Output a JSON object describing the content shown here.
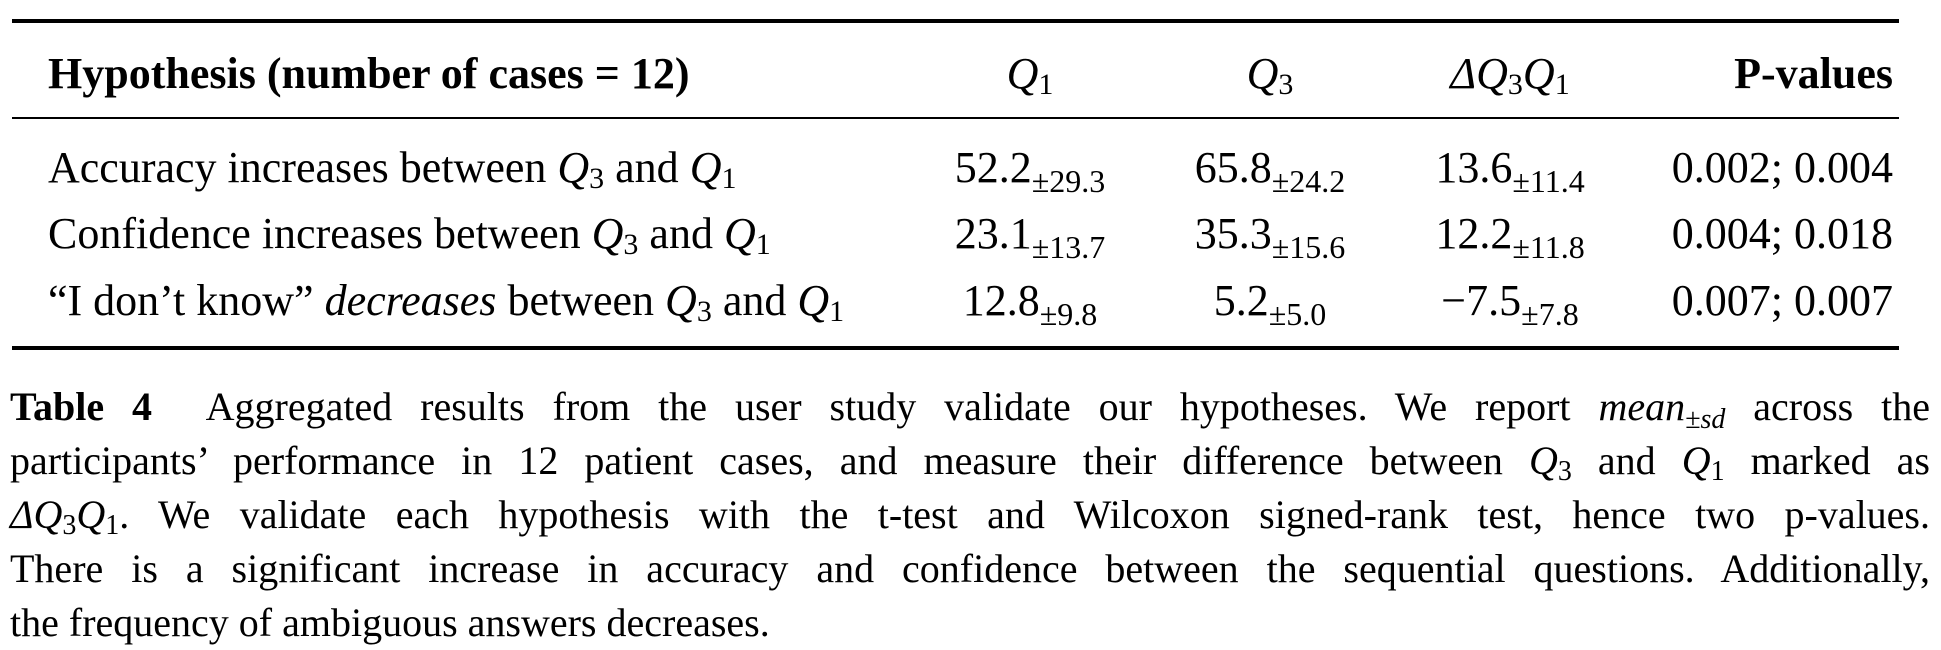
{
  "table": {
    "header": {
      "hypothesis": "Hypothesis (number of cases = 12)",
      "q1": {
        "base": "Q",
        "sub": "1"
      },
      "q3": {
        "base": "Q",
        "sub": "3"
      },
      "delta": {
        "prefix": "Δ",
        "q3_base": "Q",
        "q3_sub": "3",
        "q1_base": "Q",
        "q1_sub": "1"
      },
      "pvalues": "P-values"
    },
    "rows": [
      {
        "hyp_pre": "Accuracy increases between ",
        "hyp_em": "",
        "hyp_mid": "",
        "q_a": "Q",
        "q_a_sub": "3",
        "and": " and ",
        "q_b": "Q",
        "q_b_sub": "1",
        "q1": "52.2",
        "q1_sd": "±29.3",
        "q3": "65.8",
        "q3_sd": "±24.2",
        "delta": "13.6",
        "delta_sd": "±11.4",
        "p": "0.002; 0.004"
      },
      {
        "hyp_pre": "Confidence increases between ",
        "hyp_em": "",
        "hyp_mid": "",
        "q_a": "Q",
        "q_a_sub": "3",
        "and": " and ",
        "q_b": "Q",
        "q_b_sub": "1",
        "q1": "23.1",
        "q1_sd": "±13.7",
        "q3": "35.3",
        "q3_sd": "±15.6",
        "delta": "12.2",
        "delta_sd": "±11.8",
        "p": "0.004; 0.018"
      },
      {
        "hyp_pre": "“I don’t know” ",
        "hyp_em": "decreases",
        "hyp_mid": " between ",
        "q_a": "Q",
        "q_a_sub": "3",
        "and": " and ",
        "q_b": "Q",
        "q_b_sub": "1",
        "q1": "12.8",
        "q1_sd": "±9.8",
        "q3": "5.2",
        "q3_sd": "±5.0",
        "delta": "−7.5",
        "delta_sd": "±7.8",
        "p": "0.007; 0.007"
      }
    ]
  },
  "caption": {
    "label": "Table 4",
    "l1_a": "  Aggregated results from the user study validate our hypotheses. We report ",
    "l1_mean": "mean",
    "l1_sd": "±sd",
    "l1_b": " across the",
    "l2_a": "participants’ performance in 12 patient cases, and measure their difference between ",
    "l2_q3": "Q",
    "l2_q3_sub": "3",
    "l2_and": " and ",
    "l2_q1": "Q",
    "l2_q1_sub": "1",
    "l2_b": " marked as",
    "l3_delta": "ΔQ",
    "l3_sub3": "3",
    "l3_q": "Q",
    "l3_sub1": "1",
    "l3_b": ". We validate each hypothesis with the t-test and Wilcoxon signed-rank test, hence two p-values.",
    "l4": "There is a significant increase in accuracy and confidence between the sequential questions. Additionally,",
    "l5": "the frequency of ambiguous answers decreases."
  }
}
